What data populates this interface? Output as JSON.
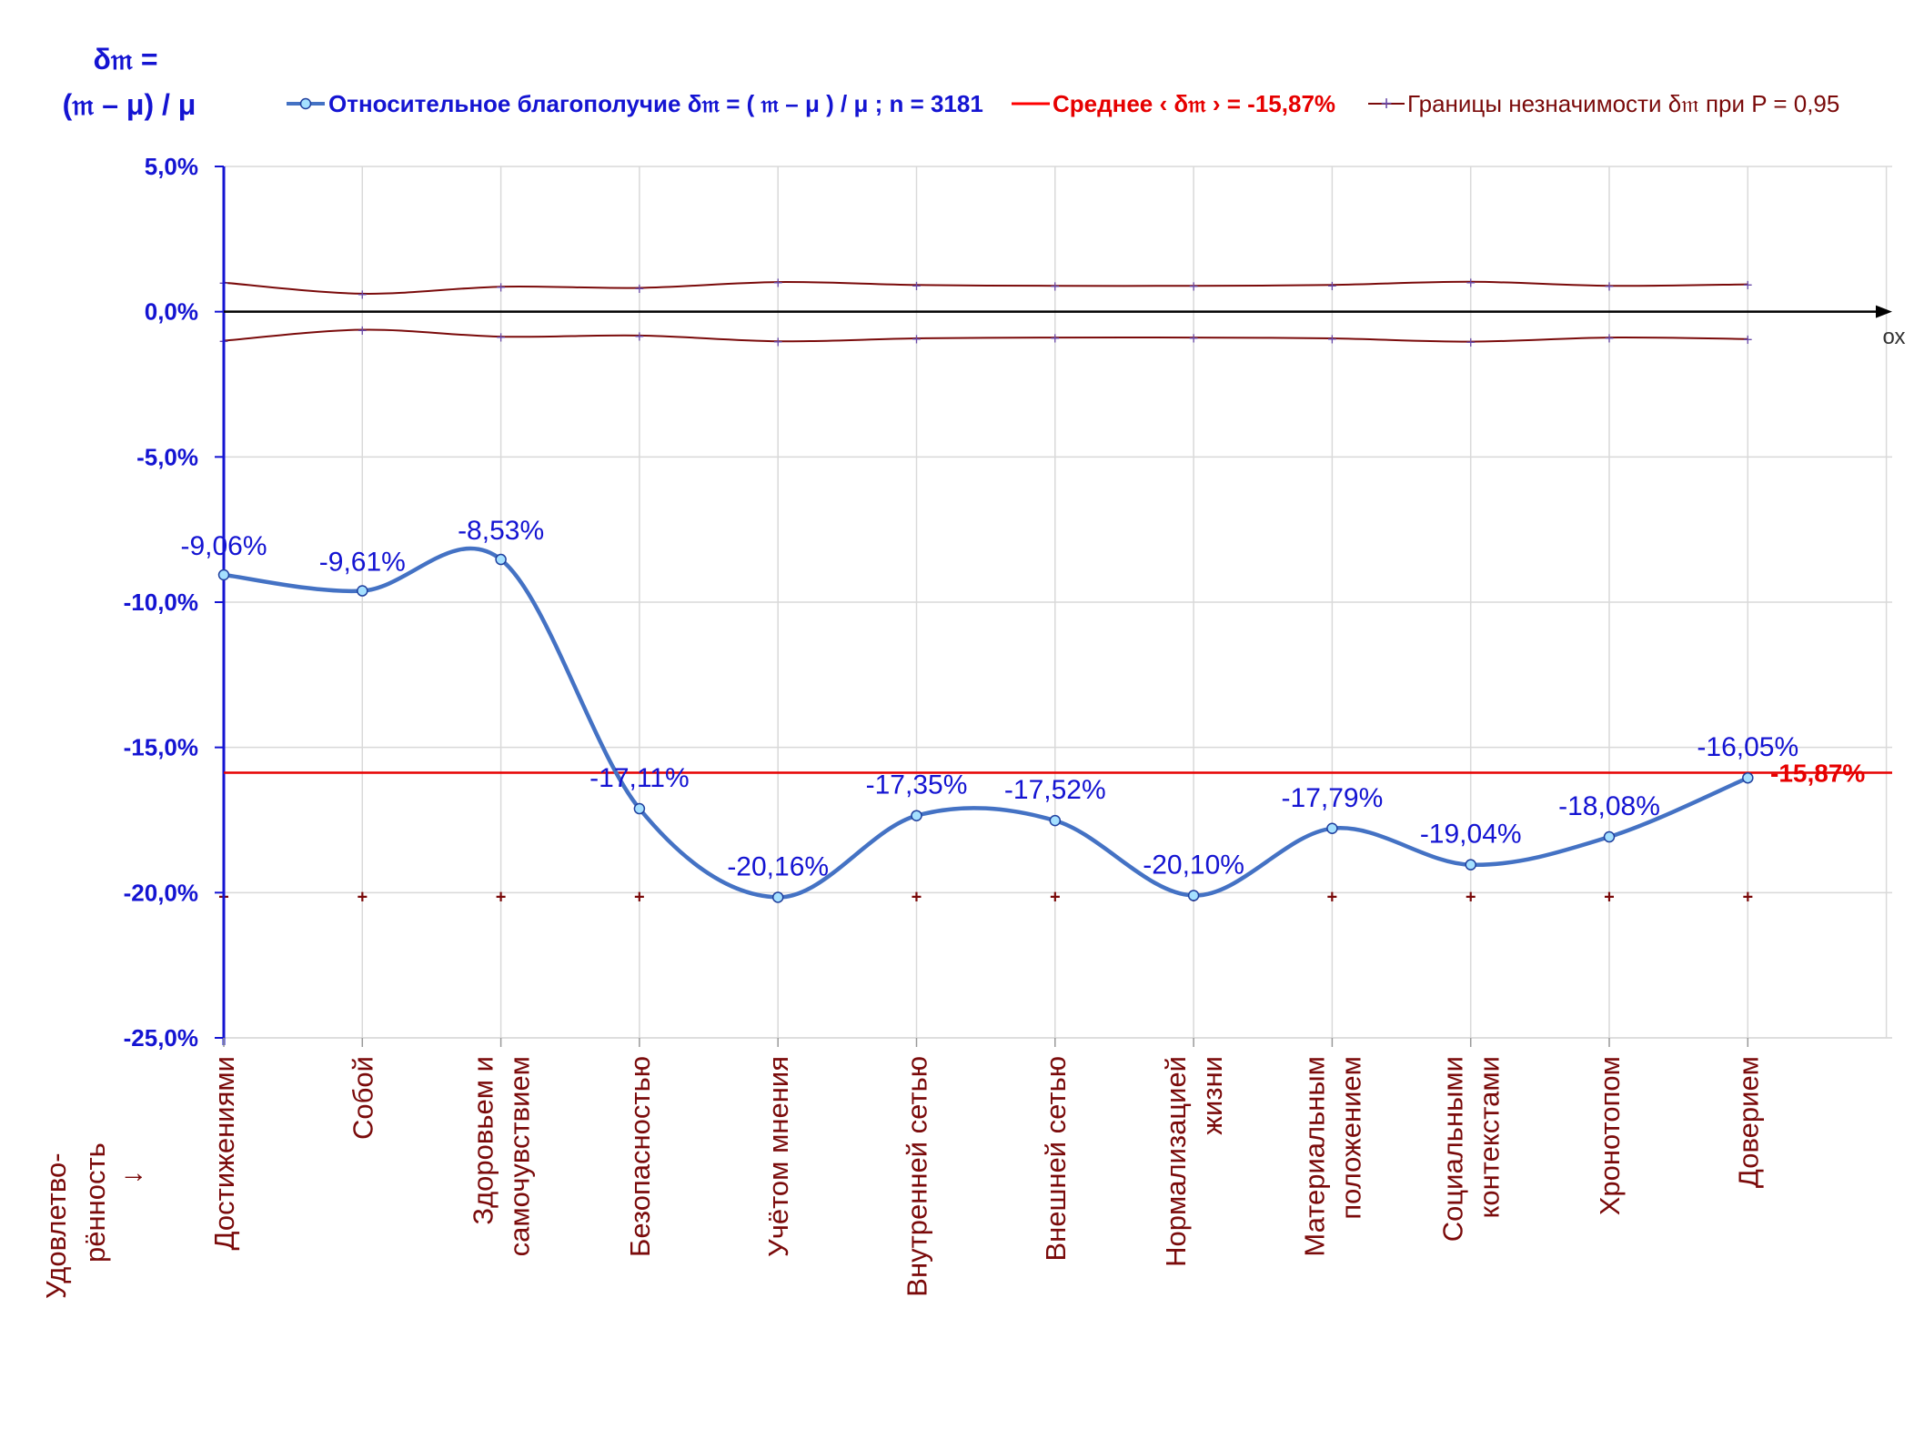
{
  "chart_data": {
    "type": "line",
    "y_title_line1": "δ𝔪 =",
    "y_title_line2": "(𝔪 – μ) / μ",
    "x_axis_name": "ох",
    "x_title": [
      "Удовлетво-",
      "рённость",
      "↓"
    ],
    "ylim": [
      -25,
      5
    ],
    "yticks": [
      5,
      0,
      -5,
      -10,
      -15,
      -20,
      -25
    ],
    "ytick_labels": [
      "5,0%",
      "0,0%",
      "-5,0%",
      "-10,0%",
      "-15,0%",
      "-20,0%",
      "-25,0%"
    ],
    "grid": true,
    "legend_position": "top",
    "categories": [
      [
        "Достижениями"
      ],
      [
        "Собой"
      ],
      [
        "Здоровьем и",
        "самочувствием"
      ],
      [
        "Безопасностью"
      ],
      [
        "Учётом мнения"
      ],
      [
        "Внутренней сетью"
      ],
      [
        "Внешней сетью"
      ],
      [
        "Нормализацией",
        "жизни"
      ],
      [
        "Материальным",
        "положением"
      ],
      [
        "Социальными",
        "контекстами"
      ],
      [
        "Хронотопом"
      ],
      [
        "Доверием"
      ]
    ],
    "series": [
      {
        "name": "Относительное благополучие δ𝔪 = ( 𝔪 – μ ) / μ ; n = 3181",
        "values": [
          -9.06,
          -9.61,
          -8.53,
          -17.11,
          -20.16,
          -17.35,
          -17.52,
          -20.1,
          -17.79,
          -19.04,
          -18.08,
          -16.05
        ],
        "labels": [
          "-9,06%",
          "-9,61%",
          "-8,53%",
          "-17,11%",
          "-20,16%",
          "-17,35%",
          "-17,52%",
          "-20,10%",
          "-17,79%",
          "-19,04%",
          "-18,08%",
          "-16,05%"
        ],
        "color": "#4472c4"
      },
      {
        "name": "Среднее ‹ δ𝔪 › = -15,87%",
        "value": -15.87,
        "label": "-15,87%",
        "color": "#ff0000"
      },
      {
        "name": "Границы незначимости δ𝔪 при P = 0,95",
        "upper": [
          1.0,
          0.62,
          0.86,
          0.82,
          1.02,
          0.92,
          0.89,
          0.89,
          0.92,
          1.03,
          0.89,
          0.94
        ],
        "lower": [
          -1.0,
          -0.62,
          -0.86,
          -0.82,
          -1.02,
          -0.92,
          -0.89,
          -0.89,
          -0.92,
          -1.03,
          -0.89,
          -0.94
        ],
        "color": "#7a0a0a"
      }
    ],
    "baseline_markers_value": -20.1
  },
  "colors": {
    "axis_blue": "#1414d2",
    "label_blue": "#1414d2",
    "mean_red": "#e60000",
    "bounds_dark": "#7a0a0a",
    "grid": "#d9d9d9"
  }
}
